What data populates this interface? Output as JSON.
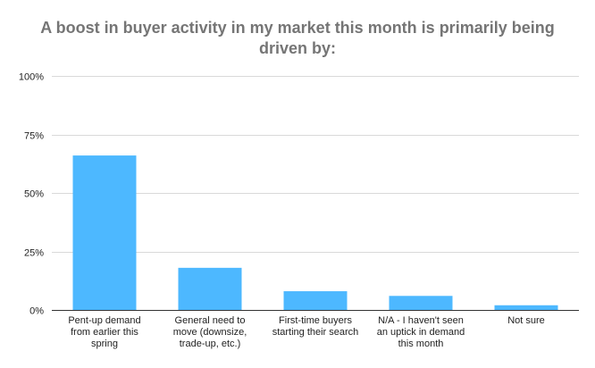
{
  "chart_data": {
    "type": "bar",
    "title_lines": [
      "A boost in buyer activity in my market this month is primarily being",
      "driven by:"
    ],
    "categories": [
      [
        "Pent-up demand",
        "from earlier this",
        "spring"
      ],
      [
        "General need to",
        "move (downsize,",
        "trade-up, etc.)"
      ],
      [
        "First-time buyers",
        "starting their search"
      ],
      [
        "N/A - I haven't seen",
        "an uptick in demand",
        "this month"
      ],
      [
        "Not sure"
      ]
    ],
    "values": [
      66,
      18,
      8,
      6,
      2
    ],
    "ylim": [
      0,
      100
    ],
    "yticks": [
      0,
      25,
      50,
      75,
      100
    ],
    "ytick_labels": [
      "0%",
      "25%",
      "50%",
      "75%",
      "100%"
    ],
    "grid": true,
    "legend": "none",
    "colors": {
      "bar": "#4db8ff",
      "grid": "#d9d9d9",
      "axis": "#333333",
      "title": "#757575",
      "text": "#222222"
    }
  }
}
